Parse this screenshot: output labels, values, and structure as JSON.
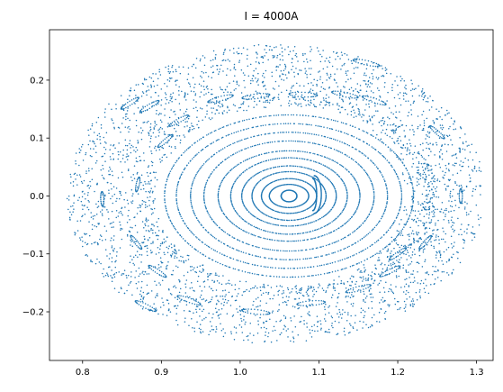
{
  "chart_data": {
    "type": "scatter",
    "title": "I = 4000A",
    "xlabel": "",
    "ylabel": "",
    "xlim": [
      0.758,
      1.321
    ],
    "ylim": [
      -0.284,
      0.287
    ],
    "xticks": [
      "0.8",
      "0.9",
      "1.0",
      "1.1",
      "1.2",
      "1.3"
    ],
    "yticks": [
      "0.2",
      "0.1",
      "0.0",
      "−0.1",
      "−0.2"
    ],
    "grid": false,
    "legend": "none",
    "marker_color": "#1f77b4",
    "center": [
      1.062,
      0.0
    ],
    "series": [
      {
        "kind": "closed_curves",
        "radii": [
          [
            0.01,
            0.01
          ],
          [
            0.025,
            0.02
          ],
          [
            0.035,
            0.03
          ],
          [
            0.047,
            0.042
          ],
          [
            0.06,
            0.052
          ],
          [
            0.074,
            0.066
          ],
          [
            0.09,
            0.078
          ],
          [
            0.108,
            0.095
          ],
          [
            0.125,
            0.11
          ],
          [
            0.143,
            0.125
          ],
          [
            0.158,
            0.14
          ]
        ]
      },
      {
        "kind": "crescent_island",
        "x_range": [
          1.085,
          1.103
        ],
        "y_range": [
          -0.03,
          0.035
        ]
      },
      {
        "kind": "island_chains",
        "islands": [
          [
            0.975,
            0.168
          ],
          [
            1.02,
            0.172
          ],
          [
            1.08,
            0.175
          ],
          [
            1.133,
            0.175
          ],
          [
            1.17,
            0.165
          ],
          [
            0.922,
            0.13
          ],
          [
            0.905,
            0.095
          ],
          [
            0.87,
            0.02
          ],
          [
            0.868,
            -0.08
          ],
          [
            0.895,
            -0.13
          ],
          [
            0.935,
            -0.18
          ],
          [
            1.02,
            -0.2
          ],
          [
            1.09,
            -0.185
          ],
          [
            1.15,
            -0.16
          ],
          [
            1.19,
            -0.13
          ],
          [
            0.885,
            0.155
          ],
          [
            0.825,
            -0.005
          ],
          [
            1.25,
            0.11
          ],
          [
            1.28,
            0.0
          ],
          [
            1.2,
            -0.1
          ],
          [
            1.16,
            0.23
          ],
          [
            0.86,
            0.16
          ],
          [
            0.88,
            -0.19
          ],
          [
            1.235,
            -0.08
          ]
        ]
      },
      {
        "kind": "chaotic_sea",
        "x_range": [
          0.775,
          1.305
        ],
        "y_range": [
          -0.255,
          0.262
        ]
      }
    ]
  }
}
